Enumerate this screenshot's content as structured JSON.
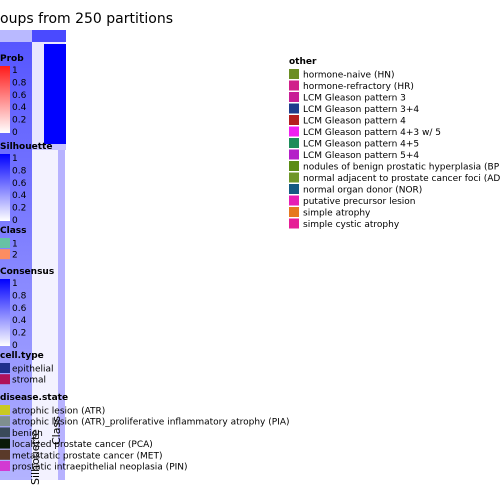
{
  "title": "oups from 250 partitions",
  "left_legends": [
    {
      "title": "Prob",
      "type": "gradient",
      "stops": [
        "#ffffff",
        "#ff0000"
      ],
      "ticks": [
        "1",
        "0.8",
        "0.6",
        "0.4",
        "0.2",
        "0"
      ]
    },
    {
      "title": "Silhouette",
      "type": "gradient",
      "stops": [
        "#ffffff",
        "#0000ff"
      ],
      "ticks": [
        "1",
        "0.8",
        "0.6",
        "0.4",
        "0.2",
        "0"
      ]
    },
    {
      "title": "Class",
      "type": "discrete",
      "items": [
        {
          "label": "1",
          "color": "#66c2a5"
        },
        {
          "label": "2",
          "color": "#fc8d62"
        }
      ]
    },
    {
      "title": "Consensus",
      "type": "gradient",
      "stops": [
        "#ffffff",
        "#0000ff"
      ],
      "ticks": [
        "1",
        "0.8",
        "0.6",
        "0.4",
        "0.2",
        "0"
      ]
    },
    {
      "title": "cell.type",
      "type": "discrete",
      "items": [
        {
          "label": "epithelial",
          "color": "#1f2e8c"
        },
        {
          "label": "stromal",
          "color": "#b0125a"
        }
      ]
    },
    {
      "title": "disease.state",
      "type": "discrete",
      "items": [
        {
          "label": "atrophic lesion (ATR)",
          "color": "#c9c922"
        },
        {
          "label": "atrophic lesion (ATR)_proliferative inflammatory atrophy (PIA)",
          "color": "#7f8f8f"
        },
        {
          "label": "benign",
          "color": "#3a4a5a"
        },
        {
          "label": "localized prostate cancer (PCA)",
          "color": "#0a1a0a"
        },
        {
          "label": "metastatic prostate cancer (MET)",
          "color": "#5a3a2a"
        },
        {
          "label": "prostatic intraepithelial neoplasia (PIN)",
          "color": "#d23ad2"
        }
      ]
    }
  ],
  "other_legend": {
    "title": "other",
    "items": [
      {
        "label": "hormone-naive (HN)",
        "color": "#6b8e23"
      },
      {
        "label": "hormone-refractory (HR)",
        "color": "#d0208a"
      },
      {
        "label": "LCM Gleason pattern 3",
        "color": "#c81e96"
      },
      {
        "label": "LCM Gleason pattern 3+4",
        "color": "#1e3c8c"
      },
      {
        "label": "LCM Gleason pattern 4",
        "color": "#b41e1e"
      },
      {
        "label": "LCM Gleason pattern 4+3 w/ 5",
        "color": "#f01ef0"
      },
      {
        "label": "LCM Gleason pattern 4+5",
        "color": "#1e8c5a"
      },
      {
        "label": "LCM Gleason pattern 5+4",
        "color": "#b41ec8"
      },
      {
        "label": "nodules of benign prostatic hyperplasia (BP",
        "color": "#5a8c14"
      },
      {
        "label": "normal adjacent to prostate cancer foci (AD",
        "color": "#6e9628"
      },
      {
        "label": "normal organ donor (NOR)",
        "color": "#145a82"
      },
      {
        "label": "putative precursor lesion",
        "color": "#e61eb4"
      },
      {
        "label": "simple atrophy",
        "color": "#e6781e"
      },
      {
        "label": "simple cystic atrophy",
        "color": "#e61e96"
      }
    ]
  },
  "column_labels": [
    "Silhouette",
    "Class"
  ],
  "chart_data": {
    "type": "heatmap",
    "title": "oups from 250 partitions",
    "annotation_tracks": [
      "Prob",
      "Silhouette",
      "Class",
      "Consensus",
      "cell.type",
      "disease.state",
      "other"
    ],
    "classes": [
      "1",
      "2"
    ],
    "prob_range": [
      0,
      1
    ],
    "silhouette_range": [
      0,
      1
    ],
    "consensus_range": [
      0,
      1
    ]
  }
}
